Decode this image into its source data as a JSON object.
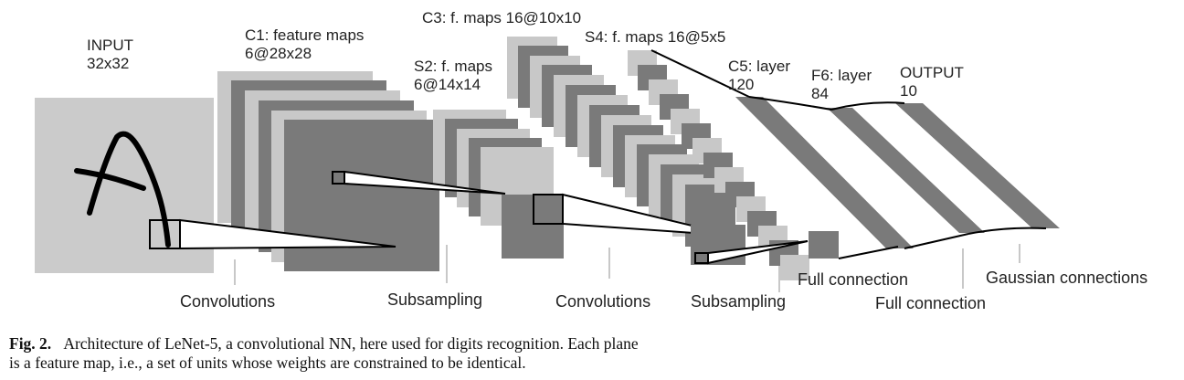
{
  "layers": {
    "input": {
      "name": "INPUT",
      "size": "32x32"
    },
    "c1": {
      "name": "C1: feature maps",
      "size": "6@28x28"
    },
    "s2": {
      "name": "S2: f. maps",
      "size": "6@14x14"
    },
    "c3": {
      "name": "C3: f. maps 16@10x10"
    },
    "s4": {
      "name": "S4: f. maps 16@5x5"
    },
    "c5": {
      "name": "C5: layer",
      "size": "120"
    },
    "f6": {
      "name": "F6: layer",
      "size": "84"
    },
    "output": {
      "name": "OUTPUT",
      "size": "10"
    }
  },
  "operations": {
    "conv1": "Convolutions",
    "sub1": "Subsampling",
    "conv2": "Convolutions",
    "sub2": "Subsampling",
    "full1": "Full connection",
    "full2": "Full connection",
    "gauss": "Gaussian connections"
  },
  "caption": {
    "label": "Fig. 2.",
    "line1": "Architecture of LeNet-5, a convolutional NN, here used for digits recognition. Each plane",
    "line2": "is a feature map, i.e., a set of units whose weights are constrained to be identical."
  },
  "colors": {
    "light": "#c8c8c8",
    "dark": "#7a7a7a",
    "input": "#cbcbcb",
    "line": "#000000"
  }
}
